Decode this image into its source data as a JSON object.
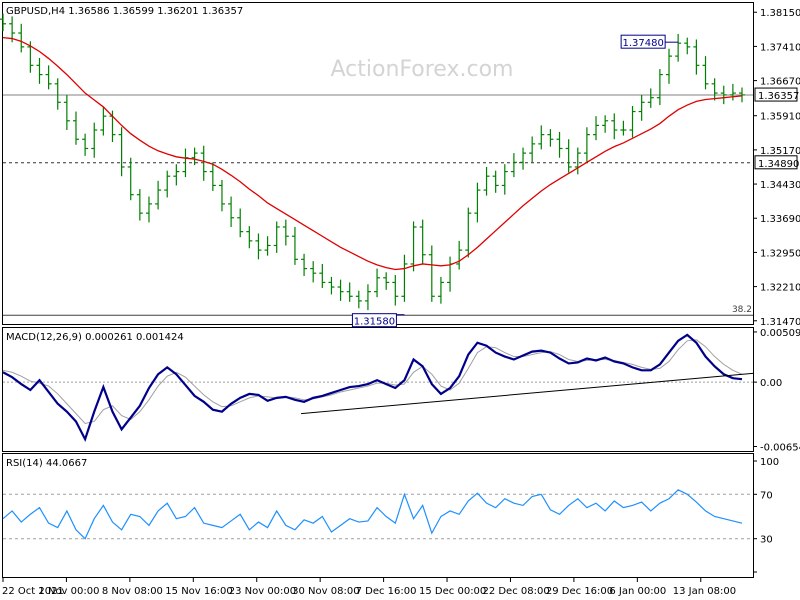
{
  "chart_data": [
    {
      "panel": "price",
      "type": "bar",
      "title": "GBPUSD,H4  1.36586 1.36599 1.36201 1.36357",
      "watermark": "ActionForex.com",
      "y_ticks": [
        "1.38150",
        "1.37410",
        "1.36670",
        "1.35910",
        "1.35170",
        "1.34430",
        "1.33690",
        "1.32950",
        "1.32210",
        "1.31470"
      ],
      "y_tick_values": [
        1.3815,
        1.3741,
        1.3667,
        1.3591,
        1.3517,
        1.3443,
        1.3369,
        1.3295,
        1.3221,
        1.3147
      ],
      "ylim": [
        1.314,
        1.3835
      ],
      "current_price": 1.36357,
      "current_price_label": "1.36357",
      "hline_level": 1.3489,
      "hline_label": "1.34890",
      "fib_level": 1.3159,
      "fib_label": "38.2",
      "high_annotation": {
        "value": 1.3748,
        "label": "1.37480"
      },
      "low_annotation": {
        "value": 1.3158,
        "label": "1.31580"
      },
      "colors": {
        "bars": "#008000",
        "ma": "#e00000",
        "current_line": "#808080",
        "hline": "#303030"
      },
      "x": [
        0,
        3,
        6,
        9,
        12,
        15,
        18,
        21,
        24,
        27,
        30,
        33,
        36,
        39,
        42,
        45,
        48,
        51,
        54,
        57,
        60,
        63,
        66,
        69,
        72,
        75,
        78,
        81,
        84,
        87,
        90,
        93,
        96,
        99,
        102,
        105,
        108,
        111,
        114,
        117,
        120,
        123,
        126,
        129,
        132,
        135,
        138,
        141,
        144,
        147,
        150,
        153,
        156,
        159,
        162,
        165,
        168,
        171,
        174,
        177,
        180,
        183,
        186,
        189,
        192,
        195,
        198,
        201,
        204,
        207,
        210,
        213,
        216,
        219,
        222,
        225,
        228,
        231,
        234,
        237,
        240,
        243
      ],
      "close": [
        1.379,
        1.377,
        1.374,
        1.37,
        1.368,
        1.366,
        1.362,
        1.358,
        1.354,
        1.352,
        1.356,
        1.359,
        1.355,
        1.348,
        1.342,
        1.338,
        1.34,
        1.343,
        1.346,
        1.347,
        1.35,
        1.351,
        1.347,
        1.344,
        1.34,
        1.337,
        1.334,
        1.332,
        1.33,
        1.331,
        1.335,
        1.333,
        1.328,
        1.326,
        1.325,
        1.323,
        1.322,
        1.321,
        1.32,
        1.319,
        1.321,
        1.324,
        1.323,
        1.32,
        1.327,
        1.335,
        1.329,
        1.32,
        1.323,
        1.327,
        1.33,
        1.338,
        1.343,
        1.346,
        1.344,
        1.347,
        1.349,
        1.351,
        1.353,
        1.355,
        1.354,
        1.352,
        1.348,
        1.351,
        1.355,
        1.357,
        1.358,
        1.356,
        1.356,
        1.36,
        1.362,
        1.363,
        1.368,
        1.372,
        1.3748,
        1.374,
        1.37,
        1.366,
        1.364,
        1.3636,
        1.364,
        1.3636
      ],
      "ma": [
        1.376,
        1.3758,
        1.3752,
        1.3742,
        1.373,
        1.3715,
        1.3698,
        1.368,
        1.366,
        1.364,
        1.3625,
        1.361,
        1.359,
        1.357,
        1.3552,
        1.3538,
        1.3525,
        1.3515,
        1.3508,
        1.3502,
        1.3499,
        1.3497,
        1.3492,
        1.3486,
        1.3475,
        1.3462,
        1.3448,
        1.3432,
        1.3418,
        1.3402,
        1.339,
        1.3378,
        1.3366,
        1.3354,
        1.3342,
        1.333,
        1.3318,
        1.3306,
        1.3296,
        1.3286,
        1.3276,
        1.3268,
        1.3262,
        1.3258,
        1.326,
        1.3266,
        1.327,
        1.3268,
        1.3266,
        1.3268,
        1.3276,
        1.329,
        1.3306,
        1.3324,
        1.3342,
        1.336,
        1.3378,
        1.3396,
        1.3412,
        1.3428,
        1.3442,
        1.3454,
        1.3466,
        1.3478,
        1.349,
        1.3502,
        1.3514,
        1.3524,
        1.3532,
        1.3542,
        1.3552,
        1.3562,
        1.3574,
        1.359,
        1.3604,
        1.3614,
        1.3622,
        1.3626,
        1.3628,
        1.363,
        1.3632,
        1.3634
      ]
    },
    {
      "panel": "macd",
      "type": "line",
      "title": "MACD(12,26,9) 0.000261 0.001424",
      "y_ticks": [
        "0.005099",
        "0.00",
        "-0.006543"
      ],
      "y_tick_values": [
        0.005099,
        0.0,
        -0.006543
      ],
      "ylim": [
        -0.007,
        0.0055
      ],
      "current_label": "0.00",
      "colors": {
        "macd": "#00008b",
        "signal": "#a0a0a0",
        "trendline": "#000000"
      },
      "x": [
        0,
        3,
        6,
        9,
        12,
        15,
        18,
        21,
        24,
        27,
        30,
        33,
        36,
        39,
        42,
        45,
        48,
        51,
        54,
        57,
        60,
        63,
        66,
        69,
        72,
        75,
        78,
        81,
        84,
        87,
        90,
        93,
        96,
        99,
        102,
        105,
        108,
        111,
        114,
        117,
        120,
        123,
        126,
        129,
        132,
        135,
        138,
        141,
        144,
        147,
        150,
        153,
        156,
        159,
        162,
        165,
        168,
        171,
        174,
        177,
        180,
        183,
        186,
        189,
        192,
        195,
        198,
        201,
        204,
        207,
        210,
        213,
        216,
        219,
        222,
        225,
        228,
        231,
        234,
        237,
        240,
        243
      ],
      "macd": [
        0.001,
        0.0005,
        -0.0002,
        -0.0008,
        0.0002,
        -0.001,
        -0.0022,
        -0.003,
        -0.004,
        -0.0058,
        -0.003,
        -0.0005,
        -0.003,
        -0.0048,
        -0.0036,
        -0.0024,
        -0.0006,
        0.0008,
        0.0015,
        0.0008,
        -0.0003,
        -0.0014,
        -0.002,
        -0.0028,
        -0.003,
        -0.0022,
        -0.0016,
        -0.0012,
        -0.0013,
        -0.0019,
        -0.0016,
        -0.0015,
        -0.0018,
        -0.002,
        -0.0016,
        -0.0014,
        -0.0011,
        -0.0008,
        -0.0005,
        -0.0004,
        -0.0002,
        0.0002,
        -0.0002,
        -0.0006,
        0.0002,
        0.0023,
        0.0016,
        -0.0002,
        -0.0012,
        -0.0006,
        0.0006,
        0.0028,
        0.004,
        0.0037,
        0.003,
        0.0026,
        0.0023,
        0.0027,
        0.0031,
        0.0032,
        0.003,
        0.0024,
        0.0019,
        0.002,
        0.0024,
        0.0022,
        0.0025,
        0.0021,
        0.0019,
        0.0015,
        0.0012,
        0.0012,
        0.0018,
        0.003,
        0.0042,
        0.0048,
        0.004,
        0.0026,
        0.0016,
        0.0008,
        0.0004,
        0.0003
      ],
      "signal": [
        0.0012,
        0.001,
        0.0006,
        0.0001,
        -0.0001,
        -0.0004,
        -0.0012,
        -0.0022,
        -0.0032,
        -0.0042,
        -0.004,
        -0.0028,
        -0.0024,
        -0.0034,
        -0.0038,
        -0.003,
        -0.0018,
        -0.0004,
        0.0006,
        0.001,
        0.0005,
        -0.0004,
        -0.0013,
        -0.002,
        -0.0025,
        -0.0024,
        -0.002,
        -0.0016,
        -0.0014,
        -0.0015,
        -0.0016,
        -0.0015,
        -0.0016,
        -0.0018,
        -0.0017,
        -0.0015,
        -0.0013,
        -0.001,
        -0.0008,
        -0.0006,
        -0.0004,
        -0.0001,
        -0.0001,
        -0.0003,
        -0.0002,
        0.001,
        0.0016,
        0.0008,
        -0.0004,
        -0.0008,
        -0.0001,
        0.0014,
        0.003,
        0.0036,
        0.0035,
        0.003,
        0.0026,
        0.0026,
        0.0028,
        0.003,
        0.0031,
        0.0028,
        0.0023,
        0.0021,
        0.0022,
        0.0023,
        0.0023,
        0.0022,
        0.002,
        0.0018,
        0.0015,
        0.0013,
        0.0014,
        0.0021,
        0.0033,
        0.0042,
        0.0043,
        0.0036,
        0.0026,
        0.0018,
        0.0012,
        0.0008
      ],
      "trendline": {
        "from": {
          "x": 98,
          "y": -0.0032
        },
        "to": {
          "x": 243,
          "y": 0.0008
        }
      }
    },
    {
      "panel": "rsi",
      "type": "line",
      "title": "RSI(14) 44.0667",
      "y_ticks": [
        "100",
        "70",
        "30",
        "0"
      ],
      "y_tick_values": [
        100,
        70,
        30,
        0
      ],
      "ylim": [
        0,
        100
      ],
      "levels": [
        70,
        30
      ],
      "colors": {
        "rsi": "#1e90ff",
        "levels": "#a0a0a0"
      },
      "x": [
        0,
        3,
        6,
        9,
        12,
        15,
        18,
        21,
        24,
        27,
        30,
        33,
        36,
        39,
        42,
        45,
        48,
        51,
        54,
        57,
        60,
        63,
        66,
        69,
        72,
        75,
        78,
        81,
        84,
        87,
        90,
        93,
        96,
        99,
        102,
        105,
        108,
        111,
        114,
        117,
        120,
        123,
        126,
        129,
        132,
        135,
        138,
        141,
        144,
        147,
        150,
        153,
        156,
        159,
        162,
        165,
        168,
        171,
        174,
        177,
        180,
        183,
        186,
        189,
        192,
        195,
        198,
        201,
        204,
        207,
        210,
        213,
        216,
        219,
        222,
        225,
        228,
        231,
        234,
        237,
        240,
        243
      ],
      "rsi": [
        48,
        55,
        45,
        52,
        58,
        44,
        40,
        55,
        38,
        30,
        48,
        60,
        45,
        38,
        52,
        50,
        42,
        55,
        62,
        48,
        50,
        58,
        44,
        42,
        40,
        46,
        52,
        38,
        45,
        40,
        55,
        42,
        38,
        47,
        44,
        50,
        36,
        42,
        48,
        45,
        46,
        58,
        50,
        44,
        70,
        48,
        60,
        35,
        50,
        55,
        52,
        64,
        71,
        62,
        58,
        66,
        62,
        60,
        68,
        70,
        56,
        52,
        60,
        66,
        58,
        62,
        55,
        64,
        58,
        60,
        63,
        55,
        62,
        66,
        74,
        70,
        63,
        55,
        50,
        48,
        46,
        44
      ]
    }
  ],
  "x_axis": {
    "labels": [
      "22 Oct 2021",
      "1 Nov 00:00",
      "8 Nov 08:00",
      "15 Nov 16:00",
      "23 Nov 00:00",
      "30 Nov 08:00",
      "7 Dec 16:00",
      "15 Dec 00:00",
      "22 Dec 08:00",
      "29 Dec 16:00",
      "6 Jan 00:00",
      "13 Jan 08:00"
    ],
    "positions": [
      0,
      20,
      40,
      60,
      80,
      100,
      120,
      140,
      160,
      180,
      200,
      220
    ]
  }
}
